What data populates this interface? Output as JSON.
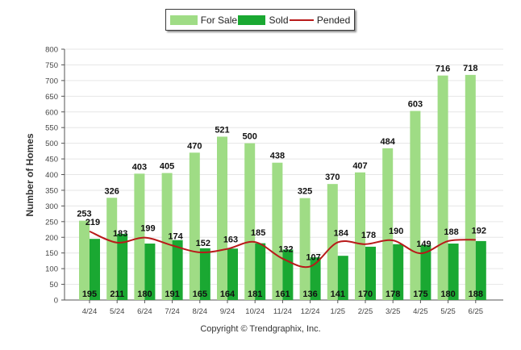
{
  "legend": {
    "for_sale": "For Sale",
    "sold": "Sold",
    "pended": "Pended"
  },
  "footer": {
    "copyright": "Copyright © Trendgraphix, Inc."
  },
  "colors": {
    "for_sale": "#9fdc85",
    "sold": "#1aa832",
    "pended": "#b81a1a",
    "grid": "#e6e6e6",
    "axis": "#555555"
  },
  "chart_data": {
    "type": "bar",
    "ylabel": "Number of Homes",
    "ylim": [
      0,
      800
    ],
    "yticks": [
      0,
      50,
      100,
      150,
      200,
      250,
      300,
      350,
      400,
      450,
      500,
      550,
      600,
      650,
      700,
      750,
      800
    ],
    "categories": [
      "4/24",
      "5/24",
      "6/24",
      "7/24",
      "8/24",
      "9/24",
      "10/24",
      "11/24",
      "12/24",
      "1/25",
      "2/25",
      "3/25",
      "4/25",
      "5/25",
      "6/25"
    ],
    "grid": true,
    "legend_position": "top",
    "series": [
      {
        "name": "For Sale",
        "kind": "bar",
        "values": [
          253,
          326,
          403,
          405,
          470,
          521,
          500,
          438,
          325,
          370,
          407,
          484,
          603,
          716,
          718
        ]
      },
      {
        "name": "Sold",
        "kind": "bar",
        "values": [
          195,
          211,
          180,
          191,
          165,
          164,
          181,
          161,
          136,
          141,
          170,
          178,
          175,
          180,
          188
        ]
      },
      {
        "name": "Pended",
        "kind": "line",
        "values": [
          219,
          183,
          199,
          174,
          152,
          163,
          185,
          132,
          107,
          184,
          178,
          190,
          149,
          188,
          192
        ]
      }
    ]
  }
}
